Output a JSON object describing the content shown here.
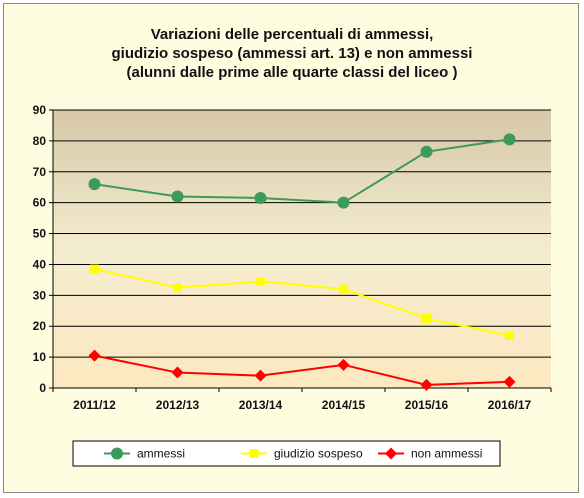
{
  "chart_data": {
    "type": "line",
    "title_lines": [
      "Variazioni delle percentuali di ammessi,",
      "giudizio sospeso (ammessi art. 13) e non ammessi",
      "(alunni dalle prime alle quarte classi del liceo )"
    ],
    "categories": [
      "2011/12",
      "2012/13",
      "2013/14",
      "2014/15",
      "2015/16",
      "2016/17"
    ],
    "ylim": [
      0,
      90
    ],
    "yticks": [
      0,
      10,
      20,
      30,
      40,
      50,
      60,
      70,
      80,
      90
    ],
    "grid": true,
    "legend_position": "bottom",
    "series": [
      {
        "name": "ammessi",
        "color": "#3c9a5a",
        "marker": "circle",
        "values": [
          66,
          62,
          61.5,
          60,
          76.5,
          80.5
        ]
      },
      {
        "name": "giudizio  sospeso",
        "color": "#ffff00",
        "marker": "square",
        "values": [
          38.5,
          32.5,
          34.5,
          32,
          22.5,
          17
        ]
      },
      {
        "name": "non ammessi",
        "color": "#ff0000",
        "marker": "diamond",
        "values": [
          10.5,
          5,
          4,
          7.5,
          1,
          2
        ]
      }
    ]
  }
}
